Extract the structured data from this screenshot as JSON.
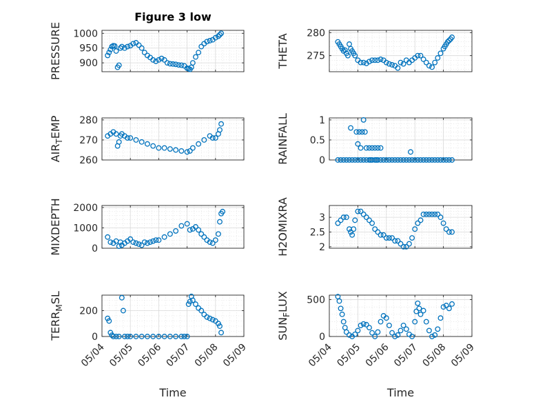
{
  "figure_title": "Figure 3 low",
  "colors": {
    "marker": "#0072bd",
    "axis": "#262626",
    "grid": "#d9d9d9"
  },
  "chart_data": [
    {
      "type": "scatter",
      "panel": "top-left",
      "title": "Figure 3 low",
      "ylabel": "PRESSURE",
      "xlabel": "",
      "ylim": [
        870,
        1010
      ],
      "yticks": [
        900,
        950,
        1000
      ],
      "ytick_labels": [
        "900",
        "950",
        "1000"
      ],
      "xlim": [
        0,
        5
      ],
      "xticks": [
        0,
        1,
        2,
        3,
        4,
        5
      ],
      "grid": "on",
      "series": [
        {
          "x": [
            0.2,
            0.25,
            0.3,
            0.35,
            0.4,
            0.45,
            0.5,
            0.55,
            0.6,
            0.65,
            0.7,
            0.8,
            0.9,
            1.0,
            1.1,
            1.2,
            1.3,
            1.4,
            1.5,
            1.6,
            1.7,
            1.8,
            1.9,
            2.0,
            2.1,
            2.2,
            2.3,
            2.4,
            2.5,
            2.6,
            2.7,
            2.8,
            2.9,
            3.0,
            3.05,
            3.1,
            3.15,
            3.2,
            3.3,
            3.4,
            3.5,
            3.6,
            3.7,
            3.8,
            3.9,
            4.0,
            4.1,
            4.15,
            4.2
          ],
          "y": [
            925,
            935,
            945,
            955,
            958,
            957,
            940,
            885,
            892,
            950,
            955,
            950,
            955,
            958,
            965,
            968,
            960,
            950,
            935,
            925,
            918,
            910,
            905,
            910,
            915,
            910,
            900,
            897,
            896,
            895,
            893,
            892,
            890,
            882,
            880,
            878,
            885,
            900,
            920,
            935,
            955,
            965,
            972,
            975,
            978,
            985,
            990,
            995,
            1000
          ]
        }
      ]
    },
    {
      "type": "scatter",
      "panel": "top-right",
      "ylabel": "THETA",
      "xlabel": "",
      "ylim": [
        271.5,
        280.5
      ],
      "yticks": [
        275,
        280
      ],
      "ytick_labels": [
        "275",
        "280"
      ],
      "xlim": [
        0,
        5
      ],
      "xticks": [
        0,
        1,
        2,
        3,
        4,
        5
      ],
      "grid": "on",
      "series": [
        {
          "x": [
            0.3,
            0.35,
            0.4,
            0.45,
            0.5,
            0.55,
            0.6,
            0.65,
            0.7,
            0.75,
            0.8,
            0.85,
            0.9,
            1.0,
            1.1,
            1.2,
            1.3,
            1.4,
            1.5,
            1.6,
            1.7,
            1.8,
            1.9,
            2.0,
            2.1,
            2.2,
            2.3,
            2.4,
            2.5,
            2.6,
            2.7,
            2.8,
            2.9,
            3.0,
            3.1,
            3.2,
            3.3,
            3.4,
            3.5,
            3.6,
            3.7,
            3.8,
            3.9,
            4.0,
            4.05,
            4.1,
            4.15,
            4.2,
            4.25,
            4.3
          ],
          "y": [
            278,
            277.5,
            277,
            276.5,
            276,
            276.2,
            275.5,
            275,
            277.5,
            276.5,
            276,
            275.5,
            275,
            274,
            273.5,
            273.5,
            273.3,
            273.7,
            274,
            274,
            274,
            274.2,
            274,
            273.5,
            273.2,
            273,
            272.8,
            272.3,
            273.5,
            273.2,
            274,
            273.5,
            274,
            274.5,
            275,
            275,
            274.2,
            273.5,
            272.8,
            272.5,
            273.5,
            274.5,
            275.5,
            276.5,
            277,
            277.5,
            278,
            278.3,
            278.6,
            279
          ]
        }
      ]
    },
    {
      "type": "scatter",
      "panel": "row2-left",
      "ylabel": "AIR_TEMP",
      "xlabel": "",
      "ylim": [
        260,
        281
      ],
      "yticks": [
        260,
        270,
        280
      ],
      "ytick_labels": [
        "260",
        "270",
        "280"
      ],
      "xlim": [
        0,
        5
      ],
      "xticks": [
        0,
        1,
        2,
        3,
        4,
        5
      ],
      "grid": "on",
      "series": [
        {
          "x": [
            0.2,
            0.3,
            0.4,
            0.5,
            0.55,
            0.6,
            0.65,
            0.7,
            0.8,
            0.9,
            1.0,
            1.2,
            1.4,
            1.6,
            1.8,
            2.0,
            2.2,
            2.4,
            2.6,
            2.8,
            3.0,
            3.1,
            3.2,
            3.4,
            3.6,
            3.8,
            3.9,
            4.0,
            4.1,
            4.15,
            4.2
          ],
          "y": [
            272,
            273,
            274,
            273,
            267,
            269,
            272,
            273,
            272,
            271,
            271,
            270,
            269,
            268,
            267,
            266,
            266,
            265.5,
            265,
            264.5,
            264,
            264.5,
            266,
            268,
            270,
            272,
            271,
            271,
            273,
            275,
            278
          ]
        }
      ]
    },
    {
      "type": "scatter",
      "panel": "row2-right",
      "ylabel": "RAINFALL",
      "xlabel": "",
      "ylim": [
        0,
        1.05
      ],
      "yticks": [
        0,
        0.5,
        1
      ],
      "ytick_labels": [
        "0",
        "0.5",
        "1"
      ],
      "xlim": [
        0,
        5
      ],
      "xticks": [
        0,
        1,
        2,
        3,
        4,
        5
      ],
      "grid": "on",
      "series": [
        {
          "x": [
            0.3,
            0.4,
            0.5,
            0.6,
            0.7,
            0.8,
            0.9,
            1.0,
            1.1,
            1.2,
            1.3,
            1.4,
            1.5,
            1.6,
            1.7,
            1.8,
            1.9,
            2.0,
            2.1,
            2.2,
            2.3,
            2.4,
            2.5,
            2.6,
            2.7,
            2.8,
            2.9,
            3.0,
            3.1,
            3.2,
            3.3,
            3.4,
            3.5,
            3.6,
            3.7,
            3.8,
            3.9,
            4.0,
            4.1,
            4.2,
            4.3,
            0.75,
            0.95,
            1.05,
            1.15,
            1.2,
            1.25,
            1.0,
            1.1,
            1.3,
            1.4,
            1.5,
            1.6,
            1.7,
            1.8,
            1.45,
            1.65,
            2.85
          ],
          "y": [
            0,
            0,
            0,
            0,
            0,
            0,
            0,
            0,
            0,
            0,
            0,
            0,
            0,
            0,
            0,
            0,
            0,
            0,
            0,
            0,
            0,
            0,
            0,
            0,
            0,
            0,
            0,
            0,
            0,
            0,
            0,
            0,
            0,
            0,
            0,
            0,
            0,
            0,
            0,
            0,
            0,
            0.8,
            0.7,
            0.7,
            0.7,
            1.0,
            0.7,
            0.4,
            0.3,
            0.3,
            0.3,
            0.3,
            0.3,
            0.3,
            0.3,
            0,
            0,
            0.2
          ]
        }
      ]
    },
    {
      "type": "scatter",
      "panel": "row3-left",
      "ylabel": "MIXDEPTH",
      "xlabel": "",
      "ylim": [
        0,
        2100
      ],
      "yticks": [
        0,
        1000,
        2000
      ],
      "ytick_labels": [
        "0",
        "1000",
        "2000"
      ],
      "xlim": [
        0,
        5
      ],
      "xticks": [
        0,
        1,
        2,
        3,
        4,
        5
      ],
      "grid": "on",
      "series": [
        {
          "x": [
            0.2,
            0.3,
            0.4,
            0.5,
            0.6,
            0.65,
            0.7,
            0.8,
            0.9,
            1.0,
            1.1,
            1.2,
            1.3,
            1.4,
            1.5,
            1.6,
            1.7,
            1.8,
            1.9,
            2.0,
            2.2,
            2.4,
            2.6,
            2.8,
            3.0,
            3.1,
            3.2,
            3.3,
            3.4,
            3.5,
            3.6,
            3.7,
            3.8,
            3.9,
            4.0,
            4.1,
            4.15,
            4.2,
            4.25
          ],
          "y": [
            550,
            300,
            250,
            350,
            100,
            300,
            150,
            250,
            350,
            450,
            300,
            250,
            200,
            150,
            300,
            250,
            300,
            350,
            400,
            400,
            550,
            700,
            850,
            1100,
            1200,
            900,
            950,
            1050,
            900,
            700,
            550,
            400,
            300,
            250,
            400,
            700,
            1300,
            1700,
            1800
          ]
        }
      ]
    },
    {
      "type": "scatter",
      "panel": "row3-right",
      "ylabel": "H2OMIXRA",
      "xlabel": "",
      "ylim": [
        1.95,
        3.4
      ],
      "yticks": [
        2,
        2.5,
        3
      ],
      "ytick_labels": [
        "2",
        "2.5",
        "3"
      ],
      "xlim": [
        0,
        5
      ],
      "xticks": [
        0,
        1,
        2,
        3,
        4,
        5
      ],
      "grid": "on",
      "series": [
        {
          "x": [
            0.3,
            0.4,
            0.5,
            0.6,
            0.7,
            0.75,
            0.8,
            0.85,
            0.9,
            1.0,
            1.1,
            1.2,
            1.3,
            1.4,
            1.5,
            1.6,
            1.7,
            1.8,
            1.9,
            2.0,
            2.1,
            2.2,
            2.3,
            2.4,
            2.5,
            2.6,
            2.7,
            2.8,
            2.9,
            3.0,
            3.1,
            3.2,
            3.3,
            3.4,
            3.5,
            3.6,
            3.7,
            3.8,
            3.9,
            4.0,
            4.1,
            4.2,
            4.3
          ],
          "y": [
            2.8,
            2.9,
            3.0,
            3.0,
            2.6,
            2.5,
            2.4,
            2.6,
            2.9,
            3.2,
            3.2,
            3.1,
            3.0,
            2.9,
            2.8,
            2.6,
            2.5,
            2.4,
            2.4,
            2.3,
            2.3,
            2.3,
            2.2,
            2.2,
            2.1,
            2.0,
            2.0,
            2.1,
            2.3,
            2.6,
            2.8,
            2.9,
            3.1,
            3.1,
            3.1,
            3.1,
            3.1,
            3.1,
            3.0,
            2.8,
            2.6,
            2.5,
            2.5
          ]
        }
      ]
    },
    {
      "type": "scatter",
      "panel": "bottom-left",
      "ylabel": "TERR_MSL",
      "xlabel": "Time",
      "ylim": [
        0,
        320
      ],
      "yticks": [
        0,
        200
      ],
      "ytick_labels": [
        "0",
        "200"
      ],
      "xlim": [
        0,
        5
      ],
      "xticks": [
        0,
        1,
        2,
        3,
        4,
        5
      ],
      "xtick_labels": [
        "05/04",
        "05/05",
        "05/06",
        "05/07",
        "05/08",
        "05/09"
      ],
      "grid": "on",
      "series": [
        {
          "x": [
            0.2,
            0.25,
            0.3,
            0.35,
            0.4,
            0.5,
            0.6,
            0.7,
            0.75,
            0.8,
            0.9,
            1.0,
            1.2,
            1.4,
            1.6,
            1.8,
            2.0,
            2.2,
            2.4,
            2.6,
            2.8,
            2.9,
            3.0,
            3.05,
            3.1,
            3.15,
            3.2,
            3.3,
            3.4,
            3.5,
            3.6,
            3.7,
            3.8,
            3.9,
            4.0,
            4.1,
            4.15,
            4.2
          ],
          "y": [
            140,
            120,
            30,
            10,
            0,
            0,
            0,
            300,
            200,
            0,
            0,
            0,
            0,
            0,
            0,
            0,
            0,
            0,
            0,
            0,
            0,
            0,
            0,
            250,
            270,
            310,
            280,
            250,
            220,
            200,
            170,
            150,
            140,
            130,
            120,
            100,
            80,
            30
          ]
        }
      ]
    },
    {
      "type": "scatter",
      "panel": "bottom-right",
      "ylabel": "SUN_FLUX",
      "xlabel": "Time",
      "ylim": [
        0,
        560
      ],
      "yticks": [
        0,
        500
      ],
      "ytick_labels": [
        "0",
        "500"
      ],
      "xlim": [
        0,
        5
      ],
      "xticks": [
        0,
        1,
        2,
        3,
        4,
        5
      ],
      "xtick_labels": [
        "05/04",
        "05/05",
        "05/06",
        "05/07",
        "05/08",
        "05/09"
      ],
      "grid": "on",
      "series": [
        {
          "x": [
            0.3,
            0.35,
            0.4,
            0.45,
            0.5,
            0.55,
            0.6,
            0.7,
            0.8,
            0.9,
            1.0,
            1.1,
            1.2,
            1.3,
            1.4,
            1.5,
            1.6,
            1.7,
            1.8,
            1.9,
            2.0,
            2.1,
            2.2,
            2.3,
            2.4,
            2.5,
            2.6,
            2.7,
            2.8,
            2.9,
            3.0,
            3.05,
            3.1,
            3.15,
            3.2,
            3.3,
            3.4,
            3.5,
            3.6,
            3.7,
            3.8,
            3.9,
            4.0,
            4.1,
            4.2,
            4.3
          ],
          "y": [
            540,
            480,
            380,
            300,
            200,
            120,
            60,
            20,
            0,
            30,
            80,
            150,
            170,
            160,
            120,
            50,
            0,
            60,
            200,
            280,
            250,
            150,
            50,
            0,
            20,
            80,
            150,
            100,
            30,
            0,
            200,
            340,
            450,
            380,
            300,
            350,
            200,
            80,
            0,
            20,
            100,
            250,
            400,
            420,
            380,
            440
          ]
        }
      ]
    }
  ]
}
